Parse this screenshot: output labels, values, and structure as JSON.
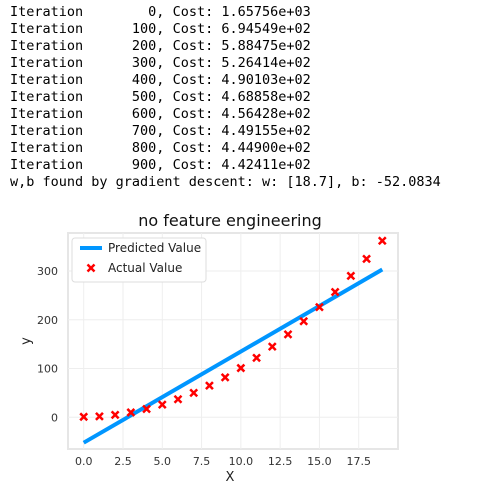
{
  "log": {
    "iterations": [
      {
        "label": "Iteration",
        "value": "    0, Cost: 1.65756e+03"
      },
      {
        "label": "Iteration",
        "value": "  100, Cost: 6.94549e+02"
      },
      {
        "label": "Iteration",
        "value": "  200, Cost: 5.88475e+02"
      },
      {
        "label": "Iteration",
        "value": "  300, Cost: 5.26414e+02"
      },
      {
        "label": "Iteration",
        "value": "  400, Cost: 4.90103e+02"
      },
      {
        "label": "Iteration",
        "value": "  500, Cost: 4.68858e+02"
      },
      {
        "label": "Iteration",
        "value": "  600, Cost: 4.56428e+02"
      },
      {
        "label": "Iteration",
        "value": "  700, Cost: 4.49155e+02"
      },
      {
        "label": "Iteration",
        "value": "  800, Cost: 4.44900e+02"
      },
      {
        "label": "Iteration",
        "value": "  900, Cost: 4.42411e+02"
      }
    ],
    "summary": "w,b found by gradient descent: w: [18.7], b: -52.0834"
  },
  "chart_data": {
    "type": "scatter",
    "title": "no feature engineering",
    "xlabel": "X",
    "ylabel": "y",
    "xlim": [
      -1,
      20
    ],
    "ylim": [
      -65,
      378
    ],
    "xticks": [
      "0.0",
      "2.5",
      "5.0",
      "7.5",
      "10.0",
      "12.5",
      "15.0",
      "17.5"
    ],
    "yticks": [
      "0",
      "100",
      "200",
      "300"
    ],
    "grid": true,
    "legend_position": "upper-left",
    "series": [
      {
        "name": "Predicted Value",
        "kind": "line",
        "color": "#0096ff",
        "x": [
          0,
          19
        ],
        "y": [
          -52.08,
          303.22
        ]
      },
      {
        "name": "Actual Value",
        "kind": "marker-x",
        "color": "#ff0000",
        "x": [
          0,
          1,
          2,
          3,
          4,
          5,
          6,
          7,
          8,
          9,
          10,
          11,
          12,
          13,
          14,
          15,
          16,
          17,
          18,
          19
        ],
        "y": [
          1,
          2,
          5,
          10,
          17,
          26,
          37,
          50,
          65,
          82,
          101,
          122,
          145,
          170,
          197,
          226,
          257,
          290,
          325,
          362
        ]
      }
    ]
  }
}
